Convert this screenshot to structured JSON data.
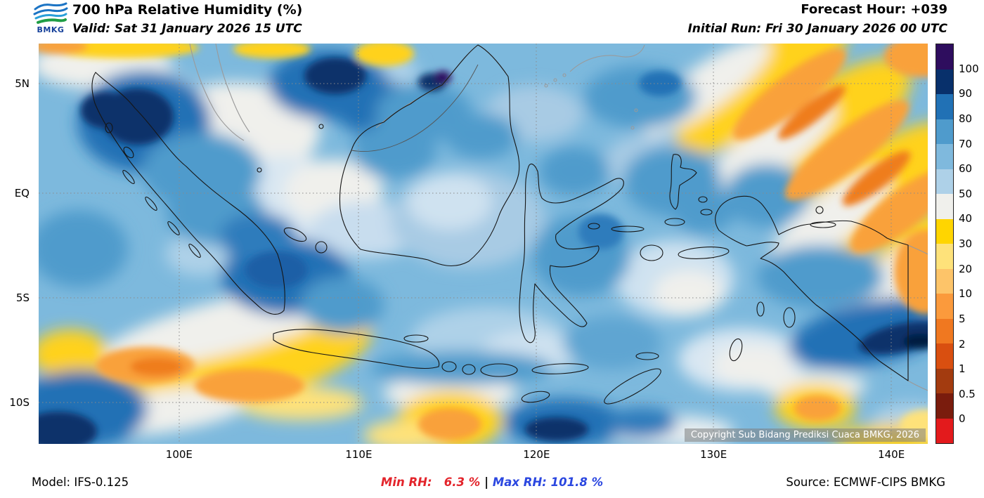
{
  "header": {
    "logo_text": "BMKG",
    "title": "700 hPa Relative Humidity (%)",
    "valid_line": "Valid: Sat 31 January 2026 15 UTC",
    "forecast_hour": "Forecast Hour: +039",
    "initial_run": "Initial Run: Fri 30 January 2026 00 UTC"
  },
  "map": {
    "lat_ticks": [
      "5N",
      "EQ",
      "5S",
      "10S"
    ],
    "lon_ticks": [
      "100E",
      "110E",
      "120E",
      "130E",
      "140E"
    ],
    "copyright": "Copyright Sub Bidang Prediksi Cuaca BMKG, 2026"
  },
  "colorbar": {
    "unit": "%",
    "tick_labels": [
      "100",
      "90",
      "80",
      "70",
      "60",
      "50",
      "40",
      "30",
      "20",
      "10",
      "5",
      "2",
      "1",
      "0.5",
      "0"
    ],
    "segment_colors": [
      "#2e0d5e",
      "#08306b",
      "#2171b5",
      "#4f9bcc",
      "#7fb9dd",
      "#aed1e8",
      "#f0f0ec",
      "#ffd500",
      "#fee27a",
      "#fdc469",
      "#fb9a3c",
      "#f07820",
      "#d94f10",
      "#a33b0f",
      "#7a1c0d",
      "#e31a1c"
    ]
  },
  "footer": {
    "model": "Model: IFS-0.125",
    "min_rh": "Min RH:   6.3 %",
    "separator": " | ",
    "max_rh": "Max RH: 101.8 %",
    "source": "Source: ECMWF-CIPS BMKG",
    "min_color": "#e3242b",
    "max_color": "#2b47e0"
  }
}
